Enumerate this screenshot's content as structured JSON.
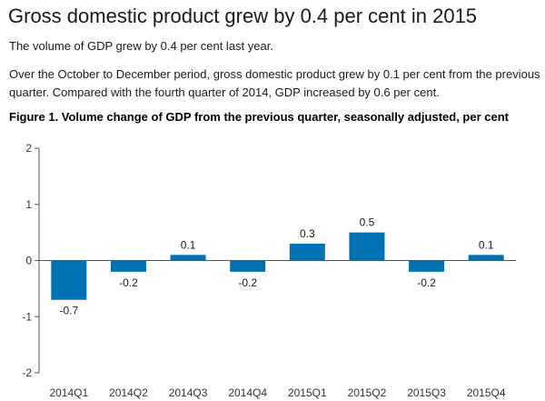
{
  "article": {
    "headline": "Gross domestic product grew by 0.4 per cent in 2015",
    "lede": "The volume of GDP grew by 0.4 per cent last year.",
    "paragraph": "Over the October to December period, gross domestic product grew by 0.1 per cent from the previous quarter. Compared with the fourth quarter of 2014, GDP increased by 0.6 per cent."
  },
  "chart_data": {
    "type": "bar",
    "title": "Figure 1. Volume change of GDP from the previous quarter, seasonally adjusted, per cent",
    "xlabel": "",
    "ylabel": "",
    "categories": [
      "2014Q1",
      "2014Q2",
      "2014Q3",
      "2014Q4",
      "2015Q1",
      "2015Q2",
      "2015Q3",
      "2015Q4"
    ],
    "values": [
      -0.7,
      -0.2,
      0.1,
      -0.2,
      0.3,
      0.5,
      -0.2,
      0.1
    ],
    "data_labels": [
      "-0.7",
      "-0.2",
      "0.1",
      "-0.2",
      "0.3",
      "0.5",
      "-0.2",
      "0.1"
    ],
    "ylim": [
      -2,
      2
    ],
    "yticks": [
      2,
      1,
      0,
      -1,
      -2
    ],
    "grid": false,
    "legend": "none",
    "bar_color": "#0071b3"
  }
}
